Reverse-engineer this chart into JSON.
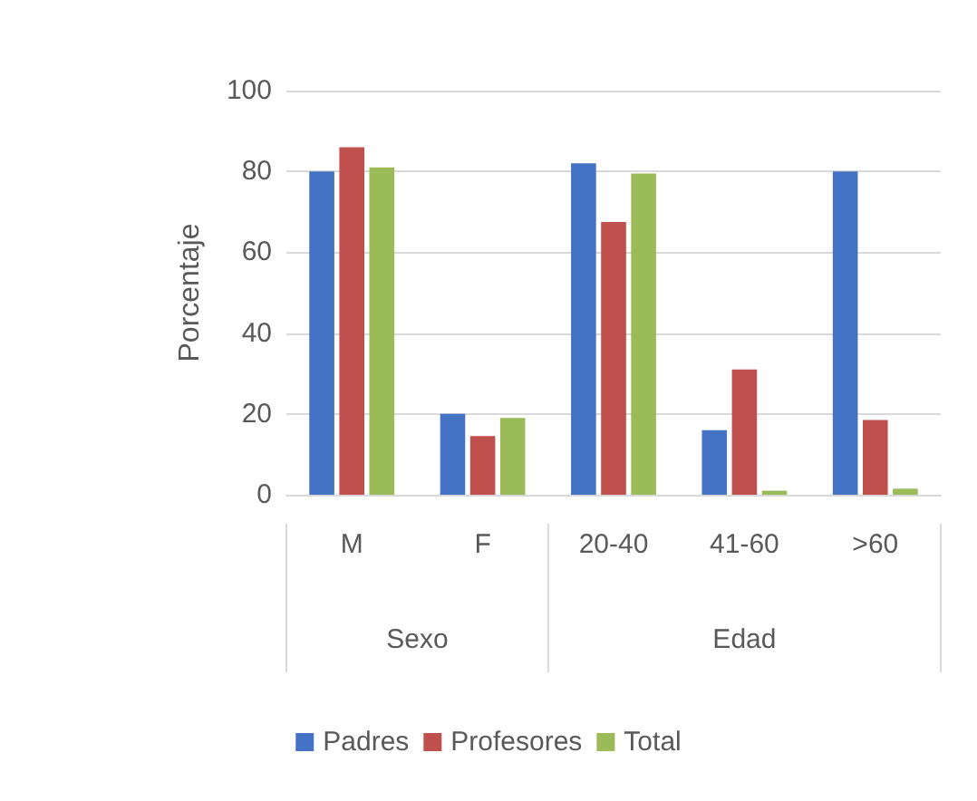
{
  "chart_data": {
    "type": "bar",
    "ylabel": "Porcentaje",
    "categories": [
      "M",
      "F",
      "20-40",
      "41-60",
      ">60"
    ],
    "series": [
      {
        "name": "Padres",
        "color": "#4472c4",
        "values": [
          80,
          20,
          82,
          16,
          80
        ]
      },
      {
        "name": "Profesores",
        "color": "#c0504d",
        "values": [
          86,
          14.5,
          67.5,
          31,
          18.5
        ]
      },
      {
        "name": "Total",
        "color": "#9bbb59",
        "values": [
          81,
          19,
          79.5,
          1,
          1.5
        ]
      }
    ],
    "annotations": [
      "Sexo",
      "Edad"
    ],
    "ylim": [
      0,
      100
    ],
    "yticks": [
      0,
      20,
      40,
      60,
      80,
      100
    ],
    "grid": "y",
    "legend": "bottom"
  }
}
